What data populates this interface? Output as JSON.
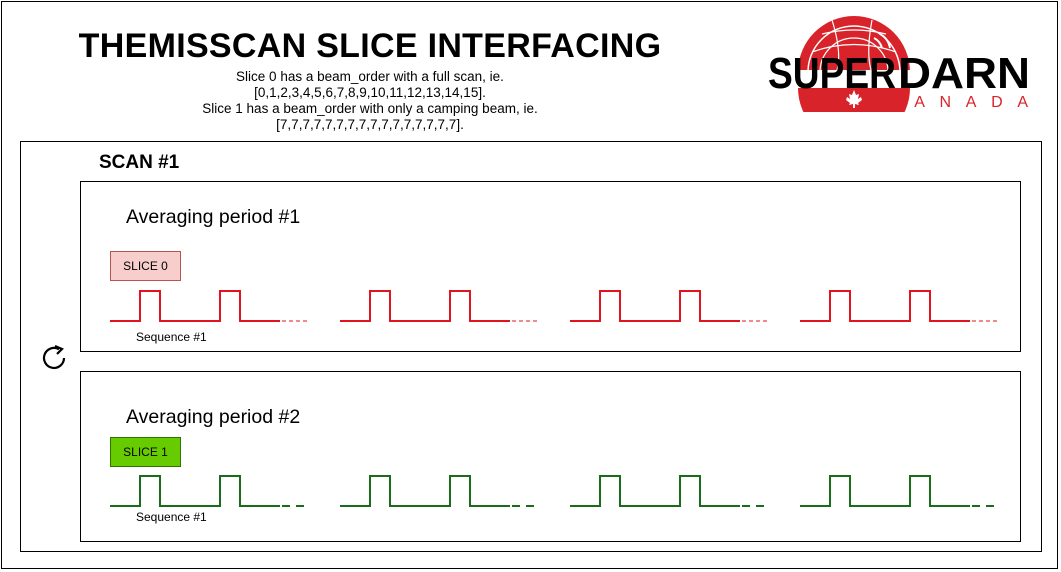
{
  "header": {
    "title": "THEMISSCAN SLICE INTERFACING",
    "description": [
      "Slice 0 has a beam_order with a full scan, ie.",
      "[0,1,2,3,4,5,6,7,8,9,10,11,12,13,14,15].",
      "Slice 1 has a beam_order with only a camping beam, ie.",
      "[7,7,7,7,7,7,7,7,7,7,7,7,7,7,7,7]."
    ]
  },
  "logo": {
    "word_left": "SUPER",
    "word_right": "DARN",
    "subtitle": "CANADA",
    "accent": "#d9232a"
  },
  "scan": {
    "label": "SCAN #1",
    "averaging_periods": [
      {
        "label": "Averaging period #1",
        "slice": "SLICE 0",
        "sequence_label": "Sequence #1",
        "color": "#e0141e",
        "fill": "#f8cecc"
      },
      {
        "label": "Averaging period #2",
        "slice": "SLICE 1",
        "sequence_label": "Sequence #1",
        "color": "#1a6b1a",
        "fill": "#66cc00"
      }
    ]
  },
  "icons": {
    "cycle": "refresh-icon"
  }
}
